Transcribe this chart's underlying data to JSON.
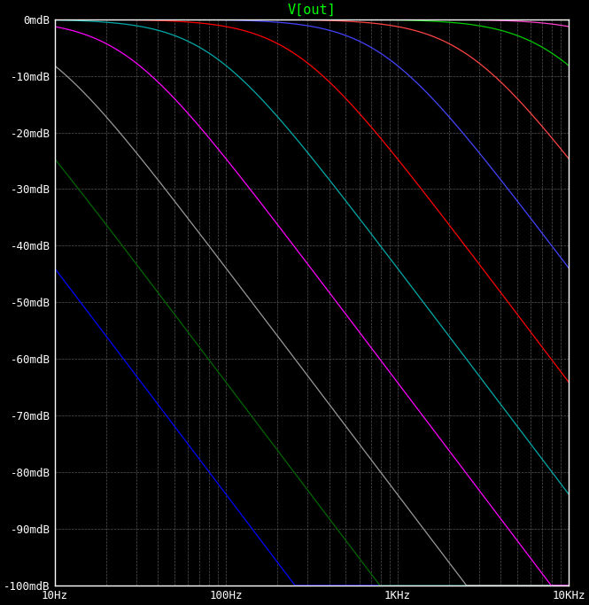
{
  "title": "V[out]",
  "title_color": "#00ff00",
  "background_color": "#000000",
  "plot_bg_color": "#000000",
  "tick_label_color": "#ffffff",
  "axis_color": "#ffffff",
  "xmin": 10,
  "xmax": 10000,
  "ymin": -100,
  "ymax": 0,
  "yticks": [
    0,
    -10,
    -20,
    -30,
    -40,
    -50,
    -60,
    -70,
    -80,
    -90,
    -100
  ],
  "ytick_labels": [
    "0mdB",
    "-10mdB",
    "-20mdB",
    "-30mdB",
    "-40mdB",
    "-50mdB",
    "-60mdB",
    "-70mdB",
    "-80mdB",
    "-90mdB",
    "-100mdB"
  ],
  "xticks": [
    10,
    100,
    1000,
    10000
  ],
  "xtick_labels": [
    "10Hz",
    "100Hz",
    "1KHz",
    "10KHz"
  ],
  "curves": [
    {
      "color": "#0000ff",
      "fc": 0.8,
      "n": 2
    },
    {
      "color": "#006600",
      "fc": 2.5,
      "n": 2
    },
    {
      "color": "#999999",
      "fc": 8,
      "n": 2
    },
    {
      "color": "#ff00ff",
      "fc": 25,
      "n": 2
    },
    {
      "color": "#00aaaa",
      "fc": 80,
      "n": 2
    },
    {
      "color": "#ff0000",
      "fc": 250,
      "n": 2
    },
    {
      "color": "#4444ff",
      "fc": 800,
      "n": 2
    },
    {
      "color": "#ff4444",
      "fc": 2500,
      "n": 2
    },
    {
      "color": "#00cc00",
      "fc": 8000,
      "n": 2
    },
    {
      "color": "#ff44cc",
      "fc": 25000,
      "n": 2
    },
    {
      "color": "#cc8800",
      "fc": 80000,
      "n": 2
    },
    {
      "color": "#aaaa00",
      "fc": 250000,
      "n": 2
    },
    {
      "color": "#aa00aa",
      "fc": 800000,
      "n": 2
    },
    {
      "color": "#00bbbb",
      "fc": 2500000,
      "n": 2
    },
    {
      "color": "#888888",
      "fc": 8000000,
      "n": 2
    },
    {
      "color": "#00ff00",
      "fc": 25000000,
      "n": 2
    },
    {
      "color": "#cc0000",
      "fc": 80000000,
      "n": 2
    },
    {
      "color": "#cc44cc",
      "fc": 250000000,
      "n": 2
    },
    {
      "color": "#ffffff",
      "fc": 800000000,
      "n": 2
    },
    {
      "color": "#ff8800",
      "fc": 2500000000,
      "n": 2
    }
  ]
}
